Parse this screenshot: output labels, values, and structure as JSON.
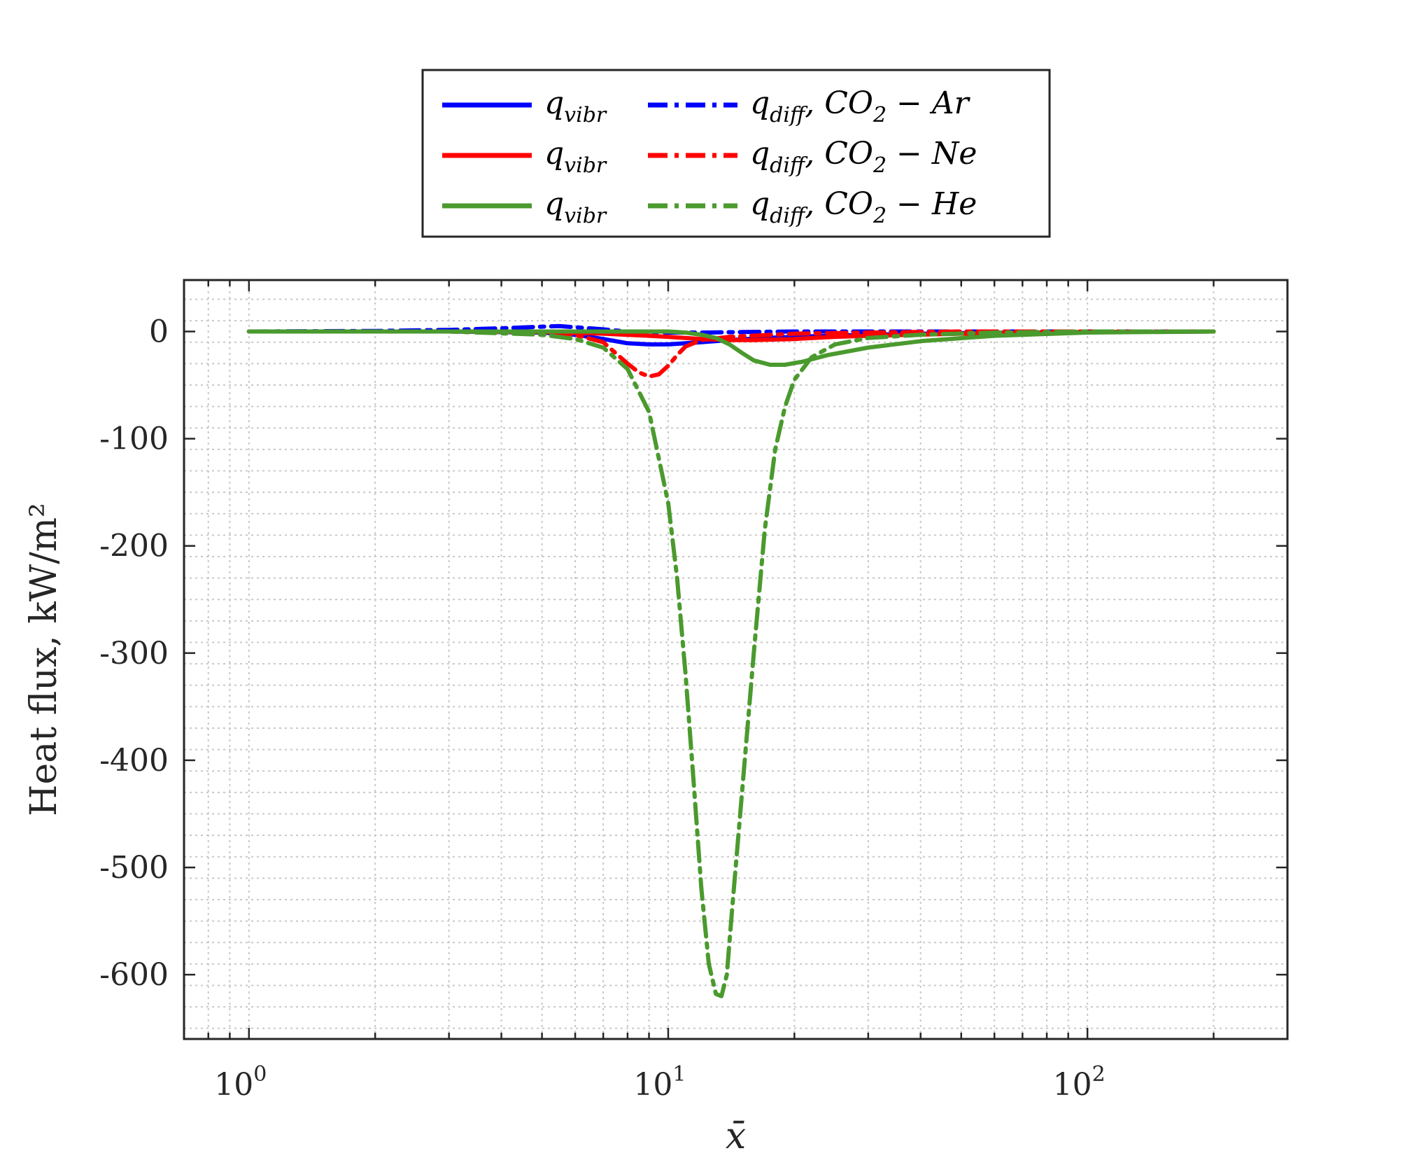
{
  "chart_data": {
    "type": "line",
    "xlabel": "x̄",
    "ylabel": "Heat flux, kW/m²",
    "xscale": "log",
    "xlim": [
      0.7,
      300
    ],
    "ylim": [
      -660,
      48
    ],
    "xticks": [
      {
        "value": 1,
        "base": "10",
        "exp": "0"
      },
      {
        "value": 10,
        "base": "10",
        "exp": "1"
      },
      {
        "value": 100,
        "base": "10",
        "exp": "2"
      }
    ],
    "yticks": [
      {
        "value": 0,
        "label": "0"
      },
      {
        "value": -100,
        "label": "-100"
      },
      {
        "value": -200,
        "label": "-200"
      },
      {
        "value": -300,
        "label": "-300"
      },
      {
        "value": -400,
        "label": "-400"
      },
      {
        "value": -500,
        "label": "-500"
      },
      {
        "value": -600,
        "label": "-600"
      }
    ],
    "grid": true,
    "legend_position": "top-center",
    "colors": {
      "blue": "#0000ff",
      "red": "#ff0000",
      "green": "#4a9a2e"
    },
    "series": [
      {
        "name": "q_vibr",
        "legend": {
          "main": "q",
          "sub": "vibr",
          "suffix": ""
        },
        "color": "#0000ff",
        "style": "solid",
        "x": [
          1,
          3,
          5,
          6,
          7,
          8,
          9,
          10,
          11,
          12,
          14,
          17,
          20,
          30,
          50,
          100,
          200
        ],
        "y": [
          0,
          0,
          -1,
          -3,
          -7,
          -11,
          -12,
          -12,
          -11,
          -10,
          -8,
          -6,
          -5,
          -3,
          -1.5,
          -0.5,
          0
        ]
      },
      {
        "name": "q_diff, CO2 - Ar",
        "legend": {
          "main": "q",
          "sub": "diff",
          "suffix": ", CO",
          "sub2": "2",
          "tail": " − Ar"
        },
        "color": "#0000ff",
        "style": "dashdot",
        "x": [
          1,
          2,
          3,
          4,
          5,
          5.5,
          6,
          7,
          8,
          10,
          12,
          15,
          20,
          30,
          50,
          100,
          200
        ],
        "y": [
          0,
          0.5,
          1.5,
          3,
          4.5,
          5,
          4,
          2,
          0,
          -1,
          -1,
          -0.5,
          0,
          0,
          0,
          0,
          0
        ]
      },
      {
        "name": "q_vibr",
        "legend": {
          "main": "q",
          "sub": "vibr",
          "suffix": ""
        },
        "color": "#ff0000",
        "style": "solid",
        "x": [
          1,
          3,
          5,
          7,
          9,
          10,
          11,
          12,
          14,
          16,
          20,
          25,
          30,
          50,
          100,
          200
        ],
        "y": [
          0,
          0,
          -0.5,
          -2,
          -4,
          -5,
          -6,
          -7,
          -8,
          -8,
          -7,
          -5,
          -4,
          -2,
          -0.5,
          0
        ]
      },
      {
        "name": "q_diff, CO2 - Ne",
        "legend": {
          "main": "q",
          "sub": "diff",
          "suffix": ", CO",
          "sub2": "2",
          "tail": " − Ne"
        },
        "color": "#ff0000",
        "style": "dashdot",
        "x": [
          1,
          3,
          5,
          6,
          7,
          8,
          8.5,
          9,
          9.5,
          10,
          10.5,
          11,
          12,
          14,
          20,
          30,
          50,
          100,
          200
        ],
        "y": [
          0,
          0,
          -1,
          -3,
          -10,
          -30,
          -38,
          -42,
          -40,
          -32,
          -22,
          -14,
          -8,
          -5,
          -2,
          -1,
          0,
          0,
          0
        ]
      },
      {
        "name": "q_vibr",
        "legend": {
          "main": "q",
          "sub": "vibr",
          "suffix": ""
        },
        "color": "#4a9a2e",
        "style": "solid",
        "x": [
          1,
          5,
          8,
          10,
          11,
          12,
          13,
          14,
          15,
          16,
          17.5,
          19,
          21,
          24,
          30,
          40,
          60,
          100,
          200
        ],
        "y": [
          0,
          0,
          0,
          0,
          -1,
          -3,
          -6,
          -12,
          -20,
          -27,
          -31,
          -31,
          -28,
          -22,
          -15,
          -9,
          -4,
          -1,
          0
        ]
      },
      {
        "name": "q_diff, CO2 - He",
        "legend": {
          "main": "q",
          "sub": "diff",
          "suffix": ", CO",
          "sub2": "2",
          "tail": " − He"
        },
        "color": "#4a9a2e",
        "style": "dashdot",
        "x": [
          1,
          3,
          5,
          6,
          7,
          8,
          9,
          10,
          10.5,
          11,
          11.5,
          12,
          12.5,
          13,
          13.4,
          13.8,
          14.2,
          15,
          16,
          17,
          18,
          19,
          20,
          22,
          25,
          30,
          40,
          60,
          100,
          200
        ],
        "y": [
          0,
          0,
          -3,
          -7,
          -15,
          -35,
          -75,
          -160,
          -230,
          -320,
          -420,
          -520,
          -590,
          -618,
          -620,
          -600,
          -540,
          -430,
          -300,
          -185,
          -110,
          -70,
          -45,
          -24,
          -12,
          -6,
          -3,
          -1,
          0,
          0
        ]
      }
    ]
  }
}
